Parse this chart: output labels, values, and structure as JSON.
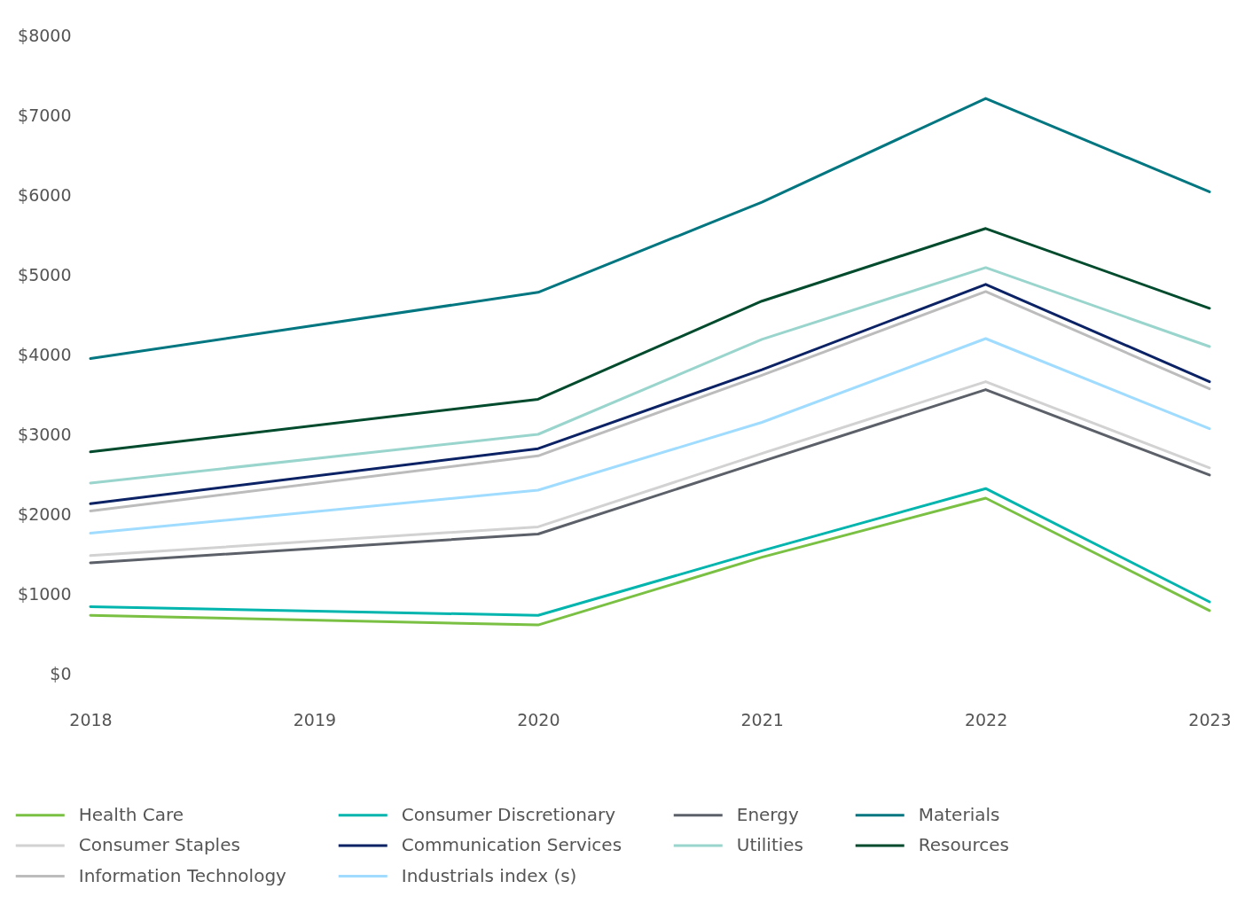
{
  "chart_data": {
    "type": "line",
    "x": [
      2018,
      2020,
      2021,
      2022,
      2023
    ],
    "xlim": [
      2018,
      2023
    ],
    "xticks": [
      2018,
      2019,
      2020,
      2021,
      2022,
      2023
    ],
    "ylim": [
      0,
      8000
    ],
    "yticks": [
      {
        "value": 0,
        "label": "$0"
      },
      {
        "value": 1000,
        "label": "$1000"
      },
      {
        "value": 2000,
        "label": "$2000"
      },
      {
        "value": 3000,
        "label": "$3000"
      },
      {
        "value": 4000,
        "label": "$4000"
      },
      {
        "value": 5000,
        "label": "$5000"
      },
      {
        "value": 6000,
        "label": "$6000"
      },
      {
        "value": 7000,
        "label": "$7000"
      },
      {
        "value": 8000,
        "label": "$8000"
      }
    ],
    "series": [
      {
        "name": "Health Care",
        "color": "#7ac143",
        "values": [
          730,
          610,
          1460,
          2200,
          790
        ]
      },
      {
        "name": "Consumer Discretionary",
        "color": "#00b5ad",
        "values": [
          840,
          730,
          1540,
          2320,
          900
        ]
      },
      {
        "name": "Energy",
        "color": "#5c6068",
        "values": [
          1390,
          1750,
          2660,
          3560,
          2490
        ]
      },
      {
        "name": "Materials",
        "color": "#007681",
        "values": [
          3950,
          4780,
          5910,
          7210,
          6040
        ]
      },
      {
        "name": "Consumer Staples",
        "color": "#d2d2d2",
        "values": [
          1480,
          1840,
          2760,
          3660,
          2580
        ]
      },
      {
        "name": "Communication Services",
        "color": "#0b2265",
        "values": [
          2130,
          2820,
          3810,
          4880,
          3660
        ]
      },
      {
        "name": "Utilities",
        "color": "#99d5cc",
        "values": [
          2390,
          3000,
          4190,
          5090,
          4100
        ]
      },
      {
        "name": "Resources",
        "color": "#004b2d",
        "values": [
          2780,
          3440,
          4670,
          5580,
          4580
        ]
      },
      {
        "name": "Information Technology",
        "color": "#bcbcbc",
        "values": [
          2040,
          2730,
          3740,
          4790,
          3570
        ]
      },
      {
        "name": "Industrials index (s)",
        "color": "#a0dcff",
        "values": [
          1760,
          2300,
          3150,
          4200,
          3070
        ]
      }
    ],
    "legend": "bottom",
    "grid": false,
    "line_style": "solid"
  }
}
